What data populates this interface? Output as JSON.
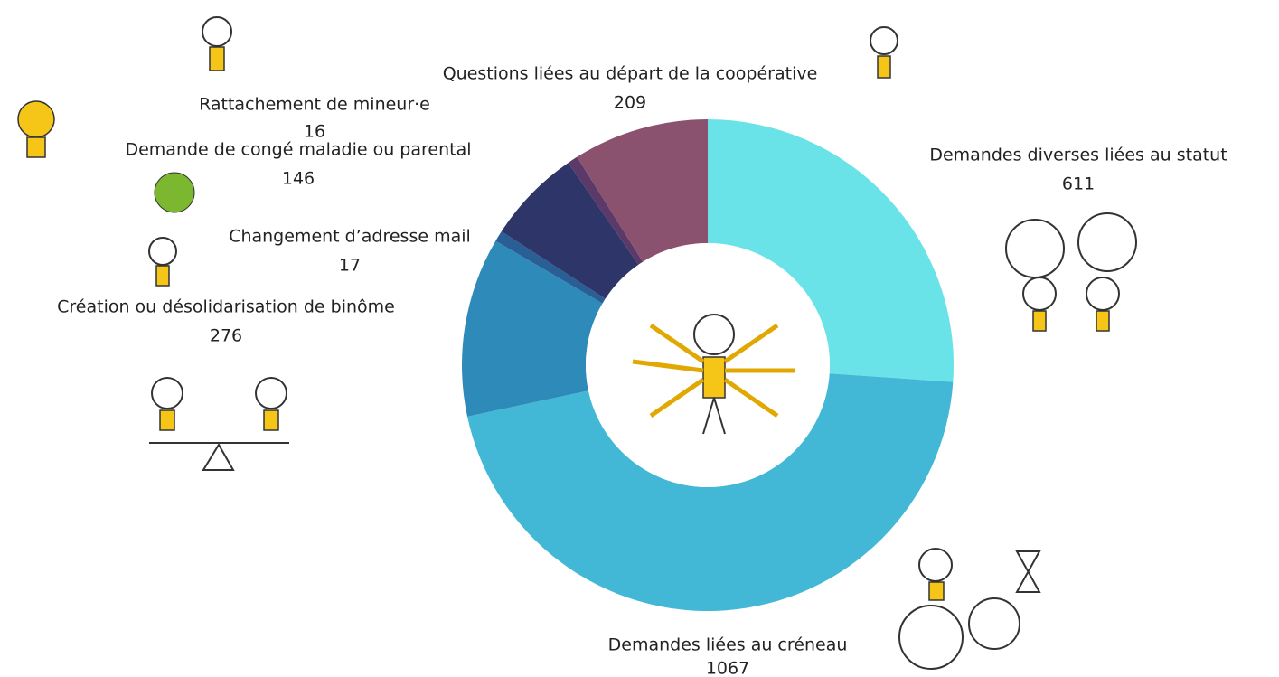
{
  "chart_data": {
    "type": "donut",
    "categories": [
      "Demandes diverses liées au statut",
      "Demandes liées au créneau",
      "Création ou désolidarisation de binôme",
      "Changement d’adresse mail",
      "Demande de congé maladie ou parental",
      "Rattachement de mineur·e",
      "Questions liées au départ de la coopérative"
    ],
    "values": [
      611,
      1067,
      276,
      17,
      146,
      16,
      209
    ],
    "colors": [
      "#6ae3e8",
      "#42b8d6",
      "#2e8ab8",
      "#2a5f96",
      "#2e3568",
      "#5b3a6a",
      "#8a526e"
    ]
  }
}
